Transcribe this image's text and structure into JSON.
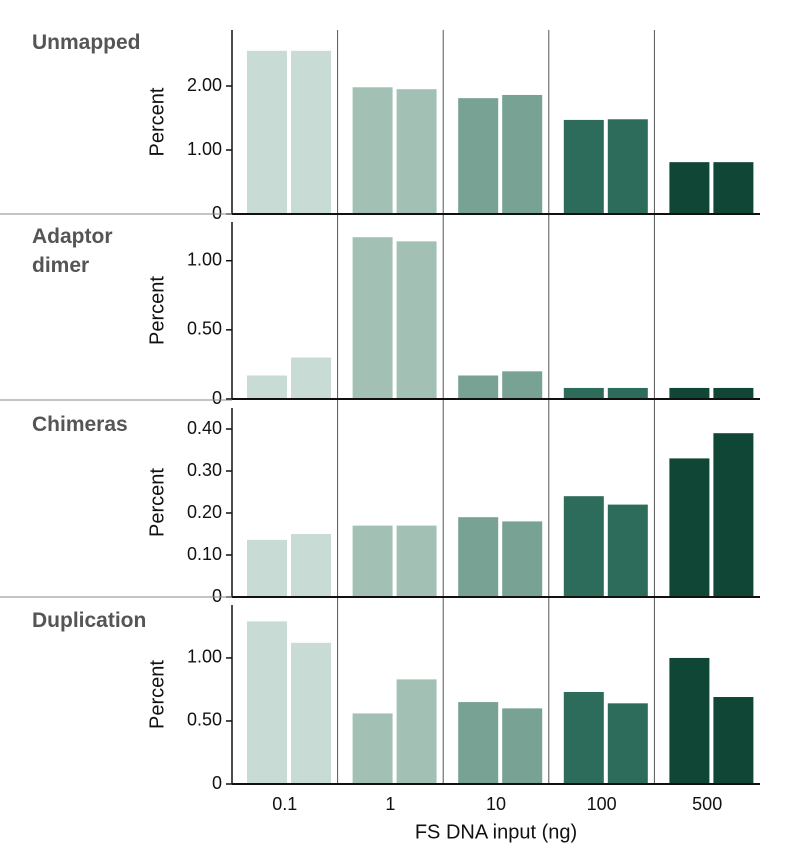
{
  "x_axis": {
    "categories": [
      "0.1",
      "1",
      "10",
      "100",
      "500"
    ],
    "label": "FS DNA input (ng)",
    "colors": [
      "#c9dbd5",
      "#a3c0b4",
      "#78a293",
      "#2d6b5a",
      "#104636"
    ]
  },
  "chart_data": [
    {
      "type": "bar",
      "title": "Unmapped",
      "ylabel": "Percent",
      "ylim": [
        0,
        2.875
      ],
      "yticks": [
        0,
        {
          "value": 1,
          "label": "1.00"
        },
        {
          "value": 2,
          "label": "2.00"
        }
      ],
      "series": [
        {
          "values": [
            2.55,
            1.98,
            1.81,
            1.47,
            0.81
          ]
        },
        {
          "values": [
            2.55,
            1.95,
            1.86,
            1.48,
            0.81
          ]
        }
      ]
    },
    {
      "type": "bar",
      "title": "Adaptor dimer",
      "ylabel": "Percent",
      "ylim": [
        0,
        1.28
      ],
      "yticks": [
        0,
        {
          "value": 0.5,
          "label": "0.50"
        },
        {
          "value": 1,
          "label": "1.00"
        }
      ],
      "series": [
        {
          "values": [
            0.17,
            1.17,
            0.17,
            0.08,
            0.08
          ]
        },
        {
          "values": [
            0.3,
            1.14,
            0.2,
            0.08,
            0.08
          ]
        }
      ]
    },
    {
      "type": "bar",
      "title": "Chimeras",
      "ylabel": "Percent",
      "ylim": [
        0,
        0.45
      ],
      "yticks": [
        0,
        {
          "value": 0.1,
          "label": "0.10"
        },
        {
          "value": 0.2,
          "label": "0.20"
        },
        {
          "value": 0.3,
          "label": "0.30"
        },
        {
          "value": 0.4,
          "label": "0.40"
        }
      ],
      "series": [
        {
          "values": [
            0.136,
            0.17,
            0.19,
            0.24,
            0.33
          ]
        },
        {
          "values": [
            0.15,
            0.17,
            0.18,
            0.22,
            0.39
          ]
        }
      ]
    },
    {
      "type": "bar",
      "title": "Duplication",
      "ylabel": "Percent",
      "ylim": [
        0,
        1.42
      ],
      "yticks": [
        0,
        {
          "value": 0.5,
          "label": "0.50"
        },
        {
          "value": 1,
          "label": "1.00"
        }
      ],
      "series": [
        {
          "values": [
            1.29,
            0.56,
            0.65,
            0.73,
            1.0
          ]
        },
        {
          "values": [
            1.12,
            0.83,
            0.6,
            0.64,
            0.69
          ]
        }
      ]
    }
  ]
}
